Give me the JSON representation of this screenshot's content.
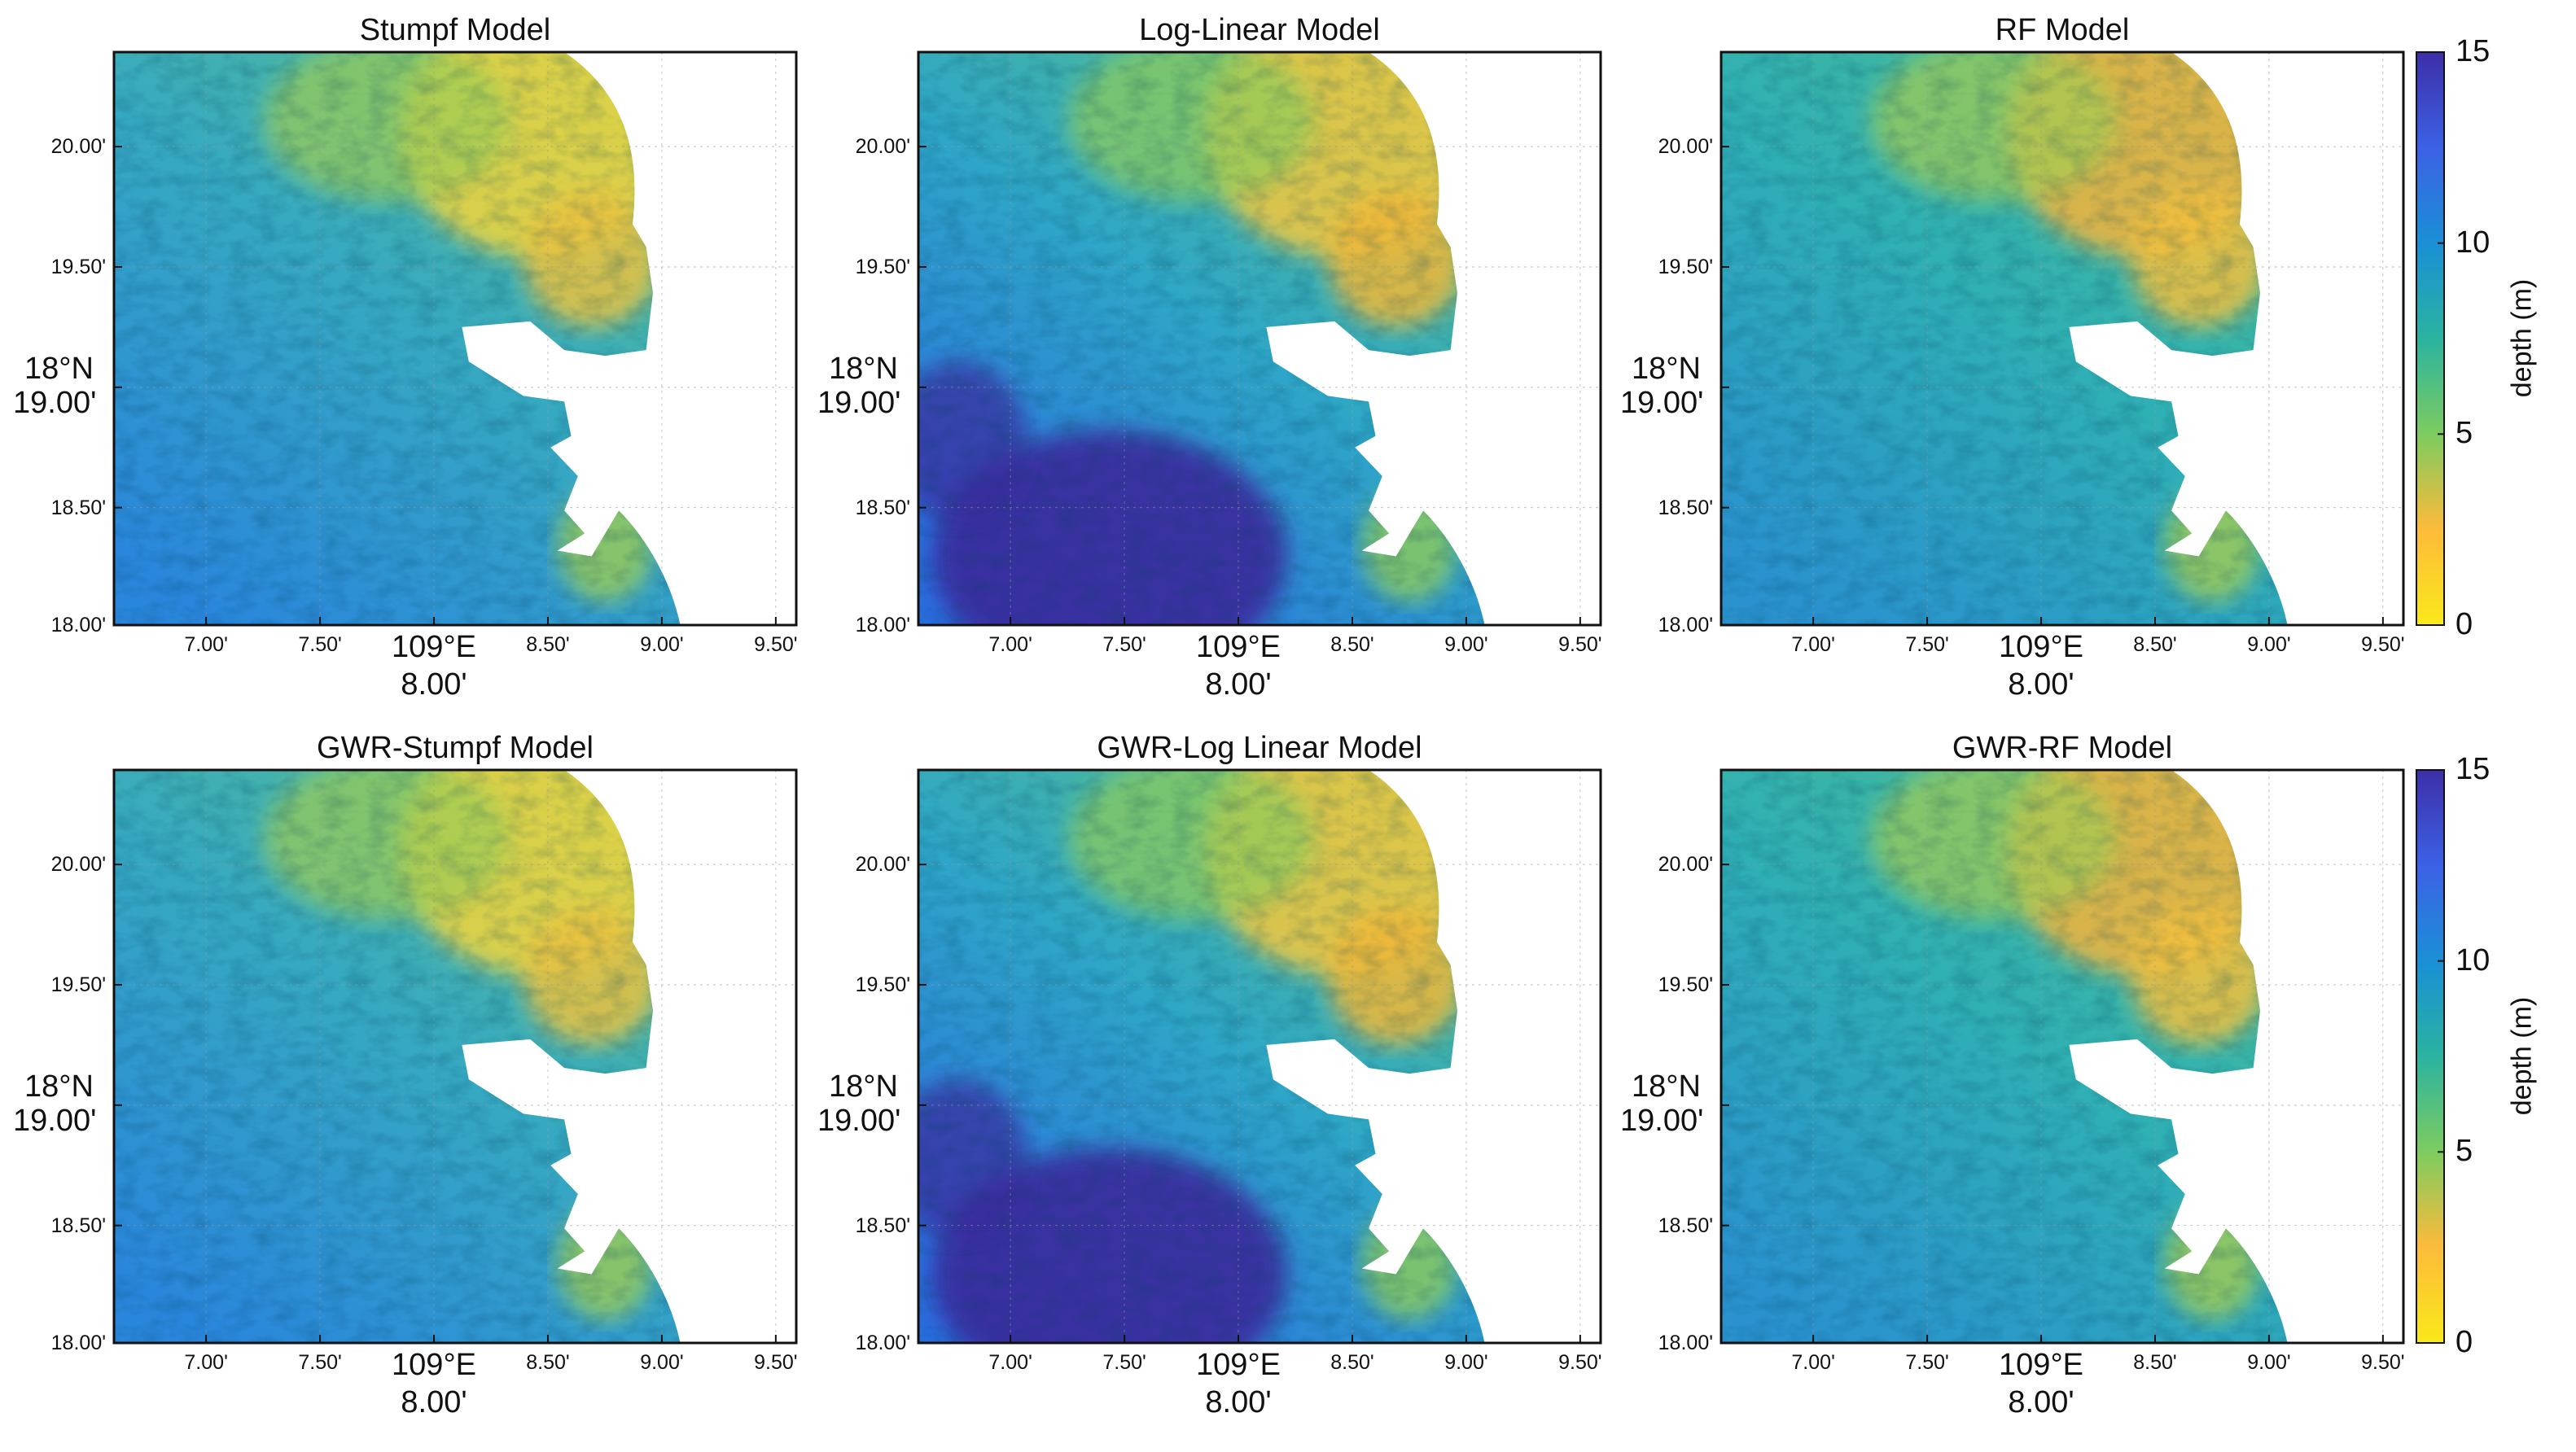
{
  "figure": {
    "panels": [
      {
        "title": "Stumpf Model",
        "variant": "stumpf"
      },
      {
        "title": "Log-Linear Model",
        "variant": "loglinear"
      },
      {
        "title": "RF Model",
        "variant": "rf"
      },
      {
        "title": "GWR-Stumpf Model",
        "variant": "stumpf"
      },
      {
        "title": "GWR-Log Linear Model",
        "variant": "loglinear"
      },
      {
        "title": "GWR-RF Model",
        "variant": "rf"
      }
    ],
    "y_ticks": [
      "20.00'",
      "19.50'",
      "19.00'",
      "18.50'",
      "18.00'"
    ],
    "y_degree_label": "18°N",
    "x_ticks": [
      "7.00'",
      "7.50'",
      "8.00'",
      "8.50'",
      "9.00'",
      "9.50'"
    ],
    "x_degree_label": "109°E",
    "colorbar": {
      "label": "depth (m)",
      "ticks": [
        "15",
        "10",
        "5",
        "0"
      ],
      "range": [
        0,
        15
      ],
      "colors": [
        "#f9e919",
        "#fdbb3a",
        "#7dcc5f",
        "#2ab3a0",
        "#1a8fd6",
        "#3c61e6",
        "#3d2ea8"
      ]
    }
  }
}
